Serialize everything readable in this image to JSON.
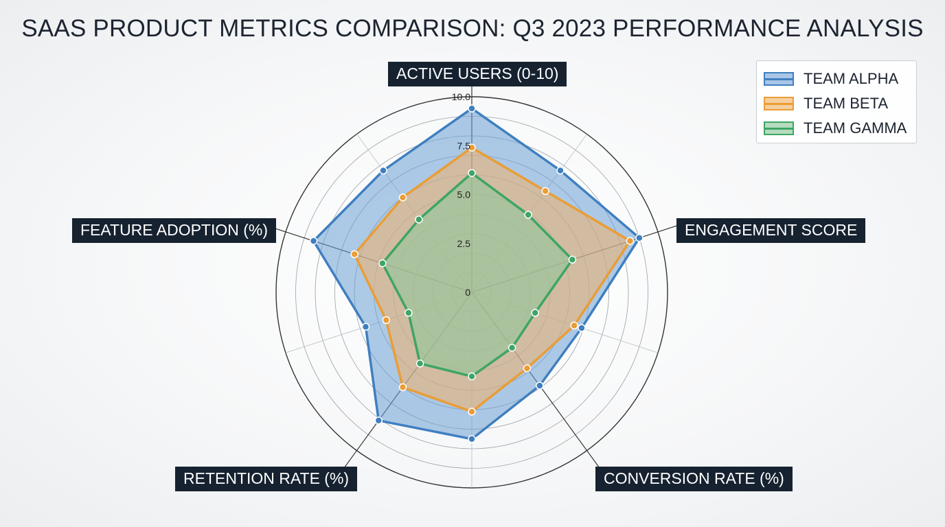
{
  "page": {
    "title": "SAAS PRODUCT METRICS COMPARISON: Q3 2023 PERFORMANCE ANALYSIS"
  },
  "chart_data": {
    "type": "radar",
    "title": "SAAS PRODUCT METRICS COMPARISON: Q3 2023 PERFORMANCE ANALYSIS",
    "categories": [
      "ACTIVE USERS (0-10)",
      "ENGAGEMENT SCORE",
      "CONVERSION RATE (%)",
      "RETENTION RATE (%)",
      "FEATURE ADOPTION (%)"
    ],
    "rlim": [
      0,
      10
    ],
    "ticks": [
      "0",
      "2.5",
      "5.0",
      "7.5",
      "10.0"
    ],
    "grid": true,
    "legend_position": "top-right",
    "series": [
      {
        "name": "TEAM ALPHA",
        "color": "#3f7fc0",
        "fill": "#6a9fd4",
        "values": [
          9.4,
          9.0,
          5.9,
          8.1,
          8.5
        ],
        "mid_values": [
          7.7,
          5.9,
          7.5,
          5.7,
          7.7
        ]
      },
      {
        "name": "TEAM BETA",
        "color": "#ea9d36",
        "fill": "#f0b06a",
        "values": [
          7.4,
          8.5,
          4.8,
          6.0,
          6.3
        ],
        "mid_values": [
          6.4,
          5.5,
          6.1,
          4.6,
          6.0
        ]
      },
      {
        "name": "TEAM GAMMA",
        "color": "#3ea565",
        "fill": "#8fc69a",
        "values": [
          6.1,
          5.4,
          3.5,
          4.5,
          4.8
        ],
        "mid_values": [
          4.9,
          3.4,
          4.3,
          3.4,
          4.6
        ]
      }
    ]
  }
}
